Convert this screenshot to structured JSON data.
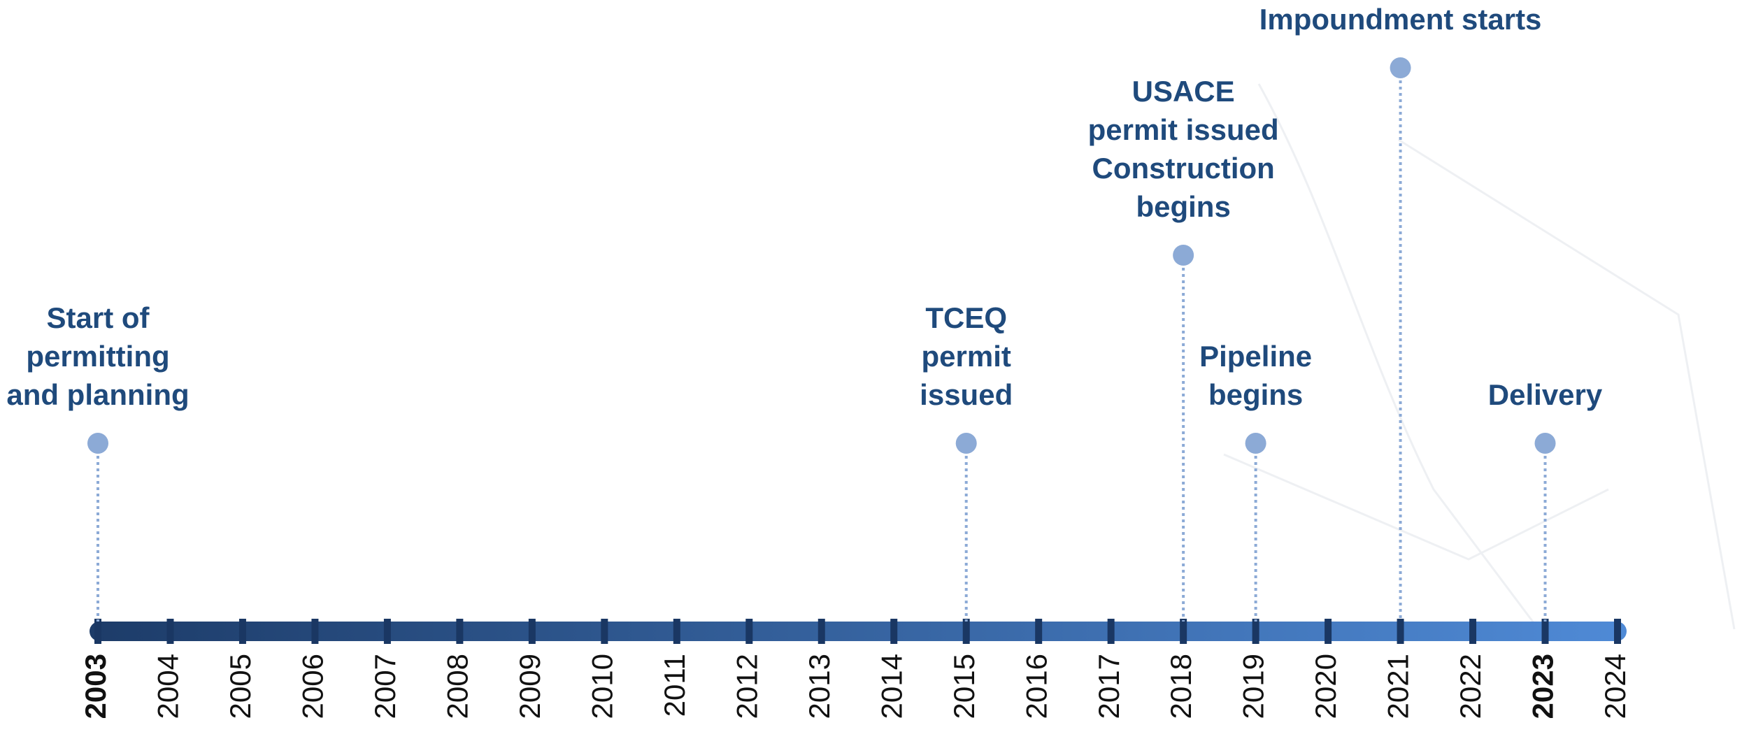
{
  "timeline": {
    "years": [
      2003,
      2004,
      2005,
      2006,
      2007,
      2008,
      2009,
      2010,
      2011,
      2012,
      2013,
      2014,
      2015,
      2016,
      2017,
      2018,
      2019,
      2020,
      2021,
      2022,
      2023,
      2024
    ],
    "bold_years": [
      2003,
      2023
    ],
    "events": [
      {
        "year": 2003,
        "label": [
          "Start of",
          "permitting",
          "and planning"
        ]
      },
      {
        "year": 2015,
        "label": [
          "TCEQ",
          "permit",
          "issued"
        ]
      },
      {
        "year": 2018,
        "label": [
          "USACE",
          "permit issued",
          "Construction",
          "begins"
        ]
      },
      {
        "year": 2019,
        "label": [
          "Pipeline",
          "begins"
        ]
      },
      {
        "year": 2021,
        "label": [
          "Impoundment starts"
        ]
      },
      {
        "year": 2023,
        "label": [
          "Delivery"
        ]
      }
    ]
  }
}
